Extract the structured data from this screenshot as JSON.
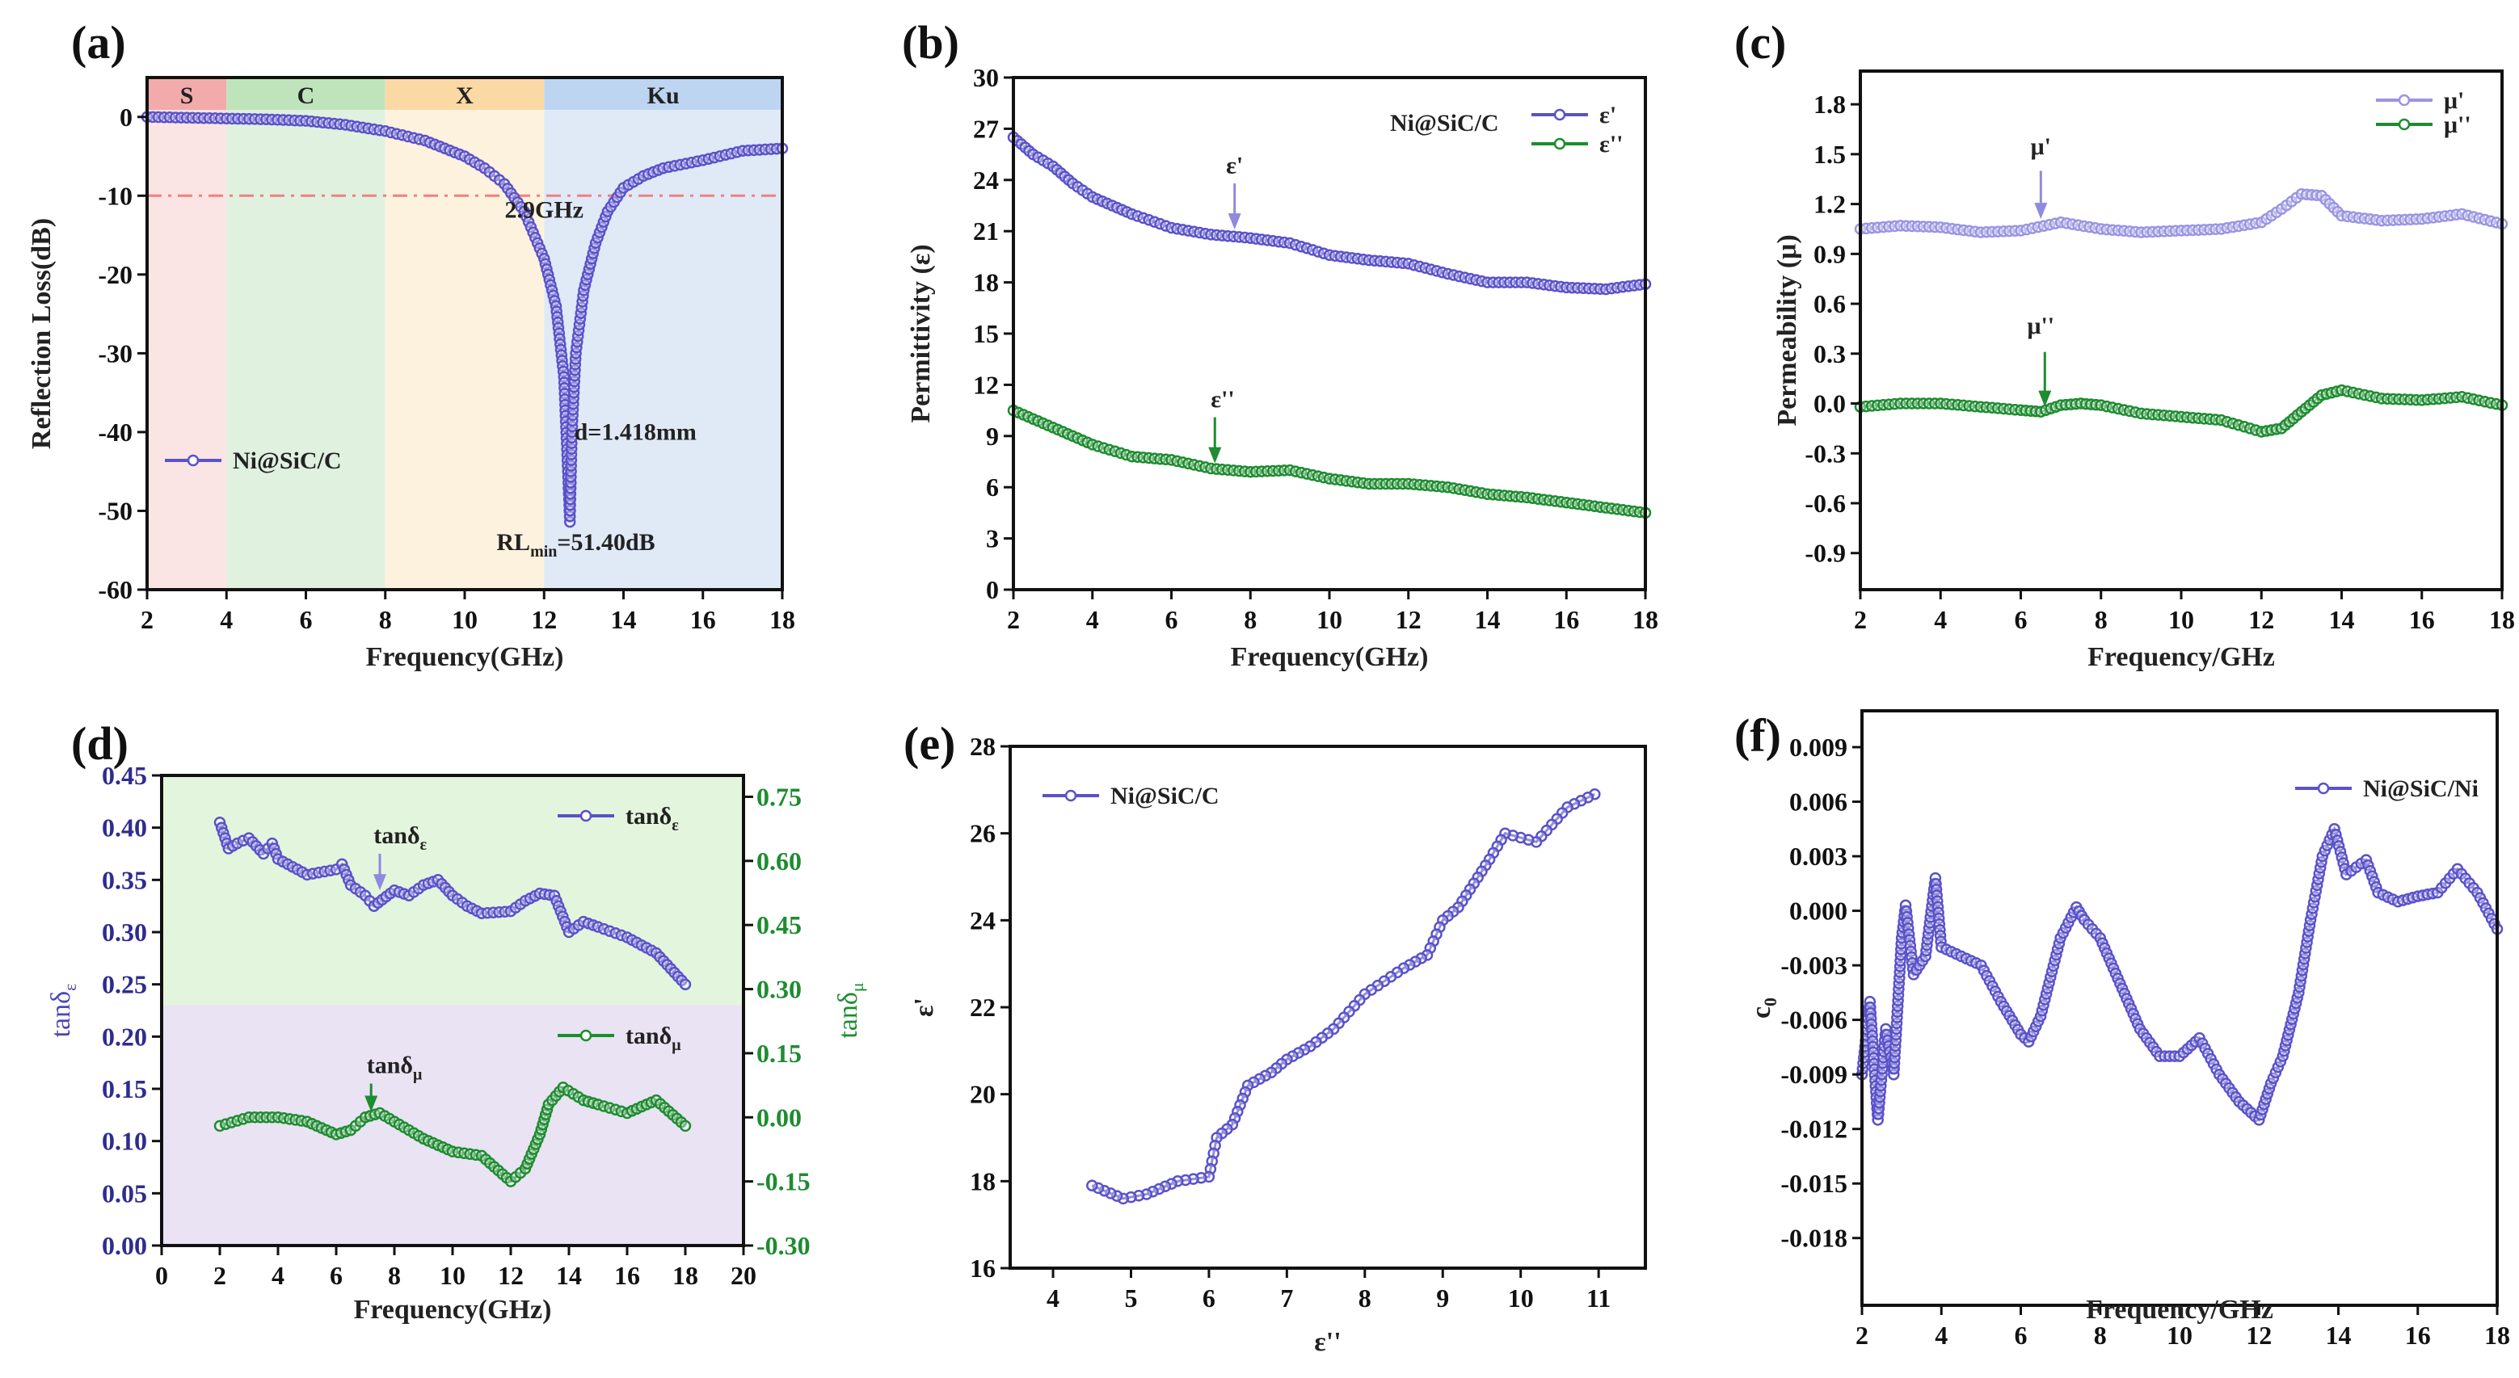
{
  "panel_labels": [
    "(a)",
    "(b)",
    "(c)",
    "(d)",
    "(e)",
    "(f)"
  ],
  "chart_data": [
    {
      "type": "line",
      "title": "",
      "xlabel": "Frequency(GHz)",
      "ylabel": "Reflection Loss(dB)",
      "xlim": [
        2,
        18
      ],
      "ylim": [
        -60,
        5
      ],
      "xticks": [
        2,
        4,
        6,
        8,
        10,
        12,
        14,
        16,
        18
      ],
      "xtick_labels": [
        "2",
        "4",
        "6",
        "8",
        "10",
        "12",
        "14",
        "16",
        "18"
      ],
      "yticks": [
        -60,
        -50,
        -40,
        -30,
        -20,
        -10,
        0
      ],
      "ytick_labels": [
        "-60",
        "-50",
        "-40",
        "-30",
        "-20",
        "-10",
        "0"
      ],
      "bands": [
        {
          "label": "S",
          "range": [
            2,
            4
          ],
          "color": "#fbe4e4",
          "strip": "#f2aaaa"
        },
        {
          "label": "C",
          "range": [
            4,
            8
          ],
          "color": "#e0f1df",
          "strip": "#bfe4bc"
        },
        {
          "label": "X",
          "range": [
            8,
            12
          ],
          "color": "#fdf2de",
          "strip": "#fbd9a4"
        },
        {
          "label": "Ku",
          "range": [
            12,
            18
          ],
          "color": "#e0eaf7",
          "strip": "#bdd5f1"
        }
      ],
      "reference_line": {
        "y": -10,
        "color": "#f08080"
      },
      "series": [
        {
          "name": "Ni@SiC/C",
          "color": "#5a52c9",
          "x": [
            2,
            3,
            4,
            5,
            6,
            7,
            8,
            9,
            10,
            10.5,
            11,
            11.5,
            12,
            12.3,
            12.5,
            12.6,
            12.65,
            12.7,
            12.8,
            13,
            13.3,
            13.6,
            14,
            14.5,
            15,
            16,
            17,
            18
          ],
          "y": [
            0,
            -0.1,
            -0.2,
            -0.3,
            -0.5,
            -1,
            -1.8,
            -3,
            -5,
            -6.5,
            -8.5,
            -12,
            -18,
            -24,
            -33,
            -45,
            -51.4,
            -40,
            -30,
            -22,
            -16,
            -12,
            -9,
            -7.5,
            -6.5,
            -5.5,
            -4.3,
            -4
          ]
        }
      ],
      "annotations": [
        {
          "text": "2.9GHz",
          "x": 12.0,
          "y": -12.8
        },
        {
          "text": "d=1.418mm",
          "x": 14.3,
          "y": -41
        },
        {
          "text": "RL",
          "sub": "min",
          "after": "=51.40dB",
          "x": 12.8,
          "y": -55
        }
      ]
    },
    {
      "type": "line",
      "title": "",
      "xlabel": "Frequency(GHz)",
      "ylabel": "Permittivity (ε)",
      "xlim": [
        2,
        18
      ],
      "ylim": [
        0,
        30
      ],
      "xticks": [
        2,
        4,
        6,
        8,
        10,
        12,
        14,
        16,
        18
      ],
      "xtick_labels": [
        "2",
        "4",
        "6",
        "8",
        "10",
        "12",
        "14",
        "16",
        "18"
      ],
      "yticks": [
        0,
        3,
        6,
        9,
        12,
        15,
        18,
        21,
        24,
        27,
        30
      ],
      "ytick_labels": [
        "0",
        "3",
        "6",
        "9",
        "12",
        "15",
        "18",
        "21",
        "24",
        "27",
        "30"
      ],
      "sample_label": "Ni@SiC/C",
      "series": [
        {
          "name": "ε'",
          "color": "#5a52c9",
          "x": [
            2,
            2.5,
            3,
            3.5,
            4,
            5,
            6,
            7,
            8,
            9,
            10,
            11,
            12,
            13,
            14,
            15,
            16,
            17,
            18
          ],
          "y": [
            26.5,
            25.5,
            24.8,
            23.8,
            23,
            22,
            21.2,
            20.8,
            20.6,
            20.3,
            19.6,
            19.3,
            19.1,
            18.5,
            18,
            18,
            17.7,
            17.6,
            17.9
          ]
        },
        {
          "name": "ε''",
          "color": "#1e8c30",
          "x": [
            2,
            3,
            4,
            5,
            6,
            7,
            8,
            9,
            10,
            11,
            12,
            13,
            14,
            15,
            16,
            17,
            18
          ],
          "y": [
            10.5,
            9.5,
            8.5,
            7.8,
            7.6,
            7.1,
            6.9,
            7,
            6.5,
            6.2,
            6.2,
            6.0,
            5.6,
            5.4,
            5.1,
            4.8,
            4.5
          ]
        }
      ],
      "annotations": [
        {
          "text": "ε'",
          "x": 7.6,
          "y": 24.4,
          "arrow": [
            23.8,
            21.1
          ],
          "color": "#8e8ae0"
        },
        {
          "text": "ε''",
          "x": 7.3,
          "y": 10.7,
          "arrow": [
            10.1,
            7.4
          ],
          "ax": 7.1,
          "color": "#1e8c30"
        }
      ]
    },
    {
      "type": "line",
      "title": "",
      "xlabel": "Frequency/GHz",
      "ylabel": "Permeability (μ)",
      "xlim": [
        2,
        18
      ],
      "ylim": [
        -1.12,
        2.0
      ],
      "xticks": [
        2,
        4,
        6,
        8,
        10,
        12,
        14,
        16,
        18
      ],
      "xtick_labels": [
        "2",
        "4",
        "6",
        "8",
        "10",
        "12",
        "14",
        "16",
        "18"
      ],
      "yticks": [
        -0.9,
        -0.6,
        -0.3,
        0,
        0.3,
        0.6,
        0.9,
        1.2,
        1.5,
        1.8
      ],
      "ytick_labels": [
        "-0.9",
        "-0.6",
        "-0.3",
        "0.0",
        "0.3",
        "0.6",
        "0.9",
        "1.2",
        "1.5",
        "1.8"
      ],
      "series": [
        {
          "name": "μ'",
          "color": "#9a95e2",
          "x": [
            2,
            3,
            4,
            5,
            6,
            7,
            8,
            9,
            10,
            11,
            12,
            12.5,
            13,
            13.5,
            14,
            15,
            16,
            17,
            18
          ],
          "y": [
            1.05,
            1.07,
            1.06,
            1.03,
            1.04,
            1.09,
            1.05,
            1.03,
            1.04,
            1.05,
            1.09,
            1.17,
            1.26,
            1.25,
            1.13,
            1.1,
            1.11,
            1.14,
            1.08
          ]
        },
        {
          "name": "μ''",
          "color": "#1e8c30",
          "x": [
            2,
            3,
            4,
            5,
            6,
            6.5,
            7,
            7.5,
            8,
            9,
            10,
            11,
            12,
            12.5,
            13,
            13.5,
            14,
            15,
            16,
            17,
            18
          ],
          "y": [
            -0.02,
            0,
            0,
            -0.02,
            -0.04,
            -0.05,
            -0.01,
            0,
            -0.01,
            -0.06,
            -0.08,
            -0.1,
            -0.17,
            -0.15,
            -0.05,
            0.05,
            0.08,
            0.03,
            0.02,
            0.04,
            -0.01
          ]
        }
      ],
      "annotations": [
        {
          "text": "μ'",
          "x": 6.5,
          "y": 1.5,
          "arrow": [
            1.4,
            1.11
          ],
          "color": "#8e8ae0"
        },
        {
          "text": "μ''",
          "x": 6.5,
          "y": 0.42,
          "arrow": [
            0.31,
            -0.02
          ],
          "ax": 6.6,
          "color": "#1e8c30"
        }
      ]
    },
    {
      "type": "line",
      "title": "",
      "xlabel": "Frequency(GHz)",
      "ylabel": "tanδ",
      "ylabel_sub": "ε",
      "ylabel_color": "#4b47b8",
      "y2label": "tanδ",
      "y2label_sub": "μ",
      "y2label_color": "#1e8c30",
      "xlim": [
        0,
        20
      ],
      "ylim": [
        0,
        0.45
      ],
      "y2lim": [
        -0.3,
        0.8
      ],
      "xticks": [
        0,
        2,
        4,
        6,
        8,
        10,
        12,
        14,
        16,
        18,
        20
      ],
      "xtick_labels": [
        "0",
        "2",
        "4",
        "6",
        "8",
        "10",
        "12",
        "14",
        "16",
        "18",
        "20"
      ],
      "yticks": [
        0,
        0.05,
        0.1,
        0.15,
        0.2,
        0.25,
        0.3,
        0.35,
        0.4,
        0.45
      ],
      "ytick_labels": [
        "0.00",
        "0.05",
        "0.10",
        "0.15",
        "0.20",
        "0.25",
        "0.30",
        "0.35",
        "0.40",
        "0.45"
      ],
      "y2ticks": [
        -0.3,
        -0.15,
        0,
        0.15,
        0.3,
        0.45,
        0.6,
        0.75
      ],
      "y2tick_labels": [
        "-0.30",
        "-0.15",
        "0.00",
        "0.15",
        "0.30",
        "0.45",
        "0.60",
        "0.75"
      ],
      "background_split_y": 0.23,
      "background_colors": {
        "upper": "#e3f5dd",
        "lower": "#e9e3f3"
      },
      "series": [
        {
          "name": "tanδ",
          "sub": "ε",
          "color": "#5a52c9",
          "axis": "left",
          "x": [
            2,
            2.3,
            2.6,
            3,
            3.5,
            3.8,
            4,
            5,
            6,
            6.2,
            6.5,
            7,
            7.3,
            8,
            8.5,
            9,
            9.5,
            10,
            10.5,
            11,
            12,
            12.5,
            13,
            13.5,
            14,
            14.5,
            15,
            16,
            17,
            17.5,
            18
          ],
          "y": [
            0.405,
            0.38,
            0.385,
            0.39,
            0.375,
            0.385,
            0.37,
            0.355,
            0.36,
            0.365,
            0.345,
            0.335,
            0.325,
            0.34,
            0.335,
            0.345,
            0.35,
            0.335,
            0.325,
            0.318,
            0.32,
            0.33,
            0.337,
            0.335,
            0.3,
            0.31,
            0.305,
            0.295,
            0.28,
            0.265,
            0.25
          ]
        },
        {
          "name": "tanδ",
          "sub": "μ",
          "color": "#1e8c30",
          "axis": "right",
          "x": [
            2,
            3,
            4,
            5,
            6,
            6.5,
            7,
            7.5,
            8,
            9,
            10,
            11,
            12,
            12.5,
            13,
            13.3,
            13.8,
            14.5,
            15,
            16,
            17,
            18
          ],
          "y": [
            -0.02,
            0,
            0,
            -0.01,
            -0.04,
            -0.03,
            0,
            0.01,
            -0.01,
            -0.05,
            -0.08,
            -0.09,
            -0.15,
            -0.12,
            -0.04,
            0.03,
            0.07,
            0.04,
            0.03,
            0.01,
            0.04,
            -0.02
          ]
        }
      ],
      "annotations": [
        {
          "text": "tanδ",
          "sub": "ε",
          "x": 8.2,
          "y": 0.385,
          "arrow": [
            0.375,
            0.34
          ],
          "ax": 7.5,
          "color": "#8e8ae0"
        },
        {
          "text": "tanδ",
          "sub": "μ",
          "x": 8.0,
          "y": 0.165,
          "arrow": [
            0.155,
            0.128
          ],
          "ax": 7.2,
          "color": "#1e8c30"
        }
      ]
    },
    {
      "type": "scatter",
      "title": "",
      "xlabel": "ε''",
      "ylabel": "ε'",
      "xlim": [
        3.45,
        11.6
      ],
      "ylim": [
        16,
        28
      ],
      "xticks": [
        4,
        5,
        6,
        7,
        8,
        9,
        10,
        11
      ],
      "xtick_labels": [
        "4",
        "5",
        "6",
        "7",
        "8",
        "9",
        "10",
        "11"
      ],
      "yticks": [
        16,
        18,
        20,
        22,
        24,
        26,
        28
      ],
      "ytick_labels": [
        "16",
        "18",
        "20",
        "22",
        "24",
        "26",
        "28"
      ],
      "series": [
        {
          "name": "Ni@SiC/C",
          "color": "#5a52c9",
          "x": [
            10.95,
            10.6,
            10.2,
            9.8,
            9.6,
            9.2,
            9.0,
            8.8,
            8.5,
            8.0,
            7.6,
            7.3,
            7.0,
            6.8,
            6.5,
            6.3,
            6.1,
            6.0,
            5.6,
            5.2,
            4.9,
            4.5
          ],
          "y": [
            26.9,
            26.6,
            25.8,
            26.0,
            25.4,
            24.3,
            24.0,
            23.2,
            22.9,
            22.3,
            21.5,
            21.1,
            20.8,
            20.5,
            20.2,
            19.3,
            19.0,
            18.1,
            18.0,
            17.7,
            17.6,
            17.9
          ]
        }
      ]
    },
    {
      "type": "line",
      "title": "",
      "xlabel": "Frequency/GHz",
      "ylabel": "c",
      "ylabel_sub": "0",
      "xlim": [
        2,
        18
      ],
      "ylim": [
        -0.0217,
        0.011
      ],
      "xticks": [
        2,
        4,
        6,
        8,
        10,
        12,
        14,
        16,
        18
      ],
      "xtick_labels": [
        "2",
        "4",
        "6",
        "8",
        "10",
        "12",
        "14",
        "16",
        "18"
      ],
      "yticks": [
        -0.018,
        -0.015,
        -0.012,
        -0.009,
        -0.006,
        -0.003,
        0,
        0.003,
        0.006,
        0.009
      ],
      "ytick_labels": [
        "-0.018",
        "-0.015",
        "-0.012",
        "-0.009",
        "-0.006",
        "-0.003",
        "0.000",
        "0.003",
        "0.006",
        "0.009"
      ],
      "series": [
        {
          "name": "Ni@SiC/Ni",
          "color": "#5a52c9",
          "x": [
            2,
            2.2,
            2.4,
            2.6,
            2.8,
            3,
            3.1,
            3.3,
            3.6,
            3.85,
            4,
            4.5,
            5,
            5.5,
            6,
            6.2,
            6.5,
            7,
            7.4,
            7.6,
            8,
            8.5,
            9,
            9.5,
            10,
            10.5,
            11,
            11.5,
            12,
            12.3,
            12.6,
            13,
            13.3,
            13.6,
            13.9,
            14.2,
            14.7,
            15,
            15.5,
            16,
            16.5,
            17,
            17.5,
            18
          ],
          "y": [
            -0.009,
            -0.005,
            -0.0115,
            -0.0065,
            -0.009,
            -0.0015,
            0.0003,
            -0.0035,
            -0.0025,
            0.0018,
            -0.002,
            -0.0025,
            -0.003,
            -0.005,
            -0.0068,
            -0.0072,
            -0.0058,
            -0.0015,
            0.0002,
            -0.0005,
            -0.0015,
            -0.004,
            -0.0065,
            -0.008,
            -0.008,
            -0.007,
            -0.009,
            -0.0105,
            -0.0115,
            -0.0095,
            -0.008,
            -0.0045,
            -0.0005,
            0.003,
            0.0045,
            0.002,
            0.0028,
            0.001,
            0.0005,
            0.0008,
            0.001,
            0.0023,
            0.001,
            -0.001
          ]
        }
      ]
    }
  ]
}
